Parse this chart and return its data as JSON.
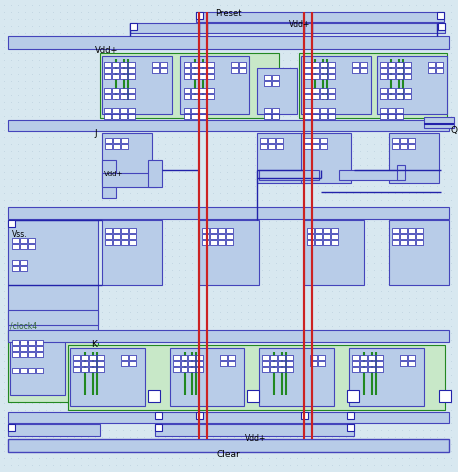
{
  "bg_color": "#d8e8f0",
  "dot_color": "#b0c4d8",
  "title_preset": "Preset",
  "title_clear": "Clear",
  "title_q": "Q",
  "title_j": "J",
  "title_k": "K",
  "title_vdd1": "Vdd+",
  "title_vdd2": "Vdd+",
  "title_vdd3": "Vdd+",
  "title_vdd4": "Vdd+",
  "title_vss": "Vss.",
  "title_clock": "/clock4",
  "fig_width": 4.58,
  "fig_height": 4.72,
  "dpi": 100
}
